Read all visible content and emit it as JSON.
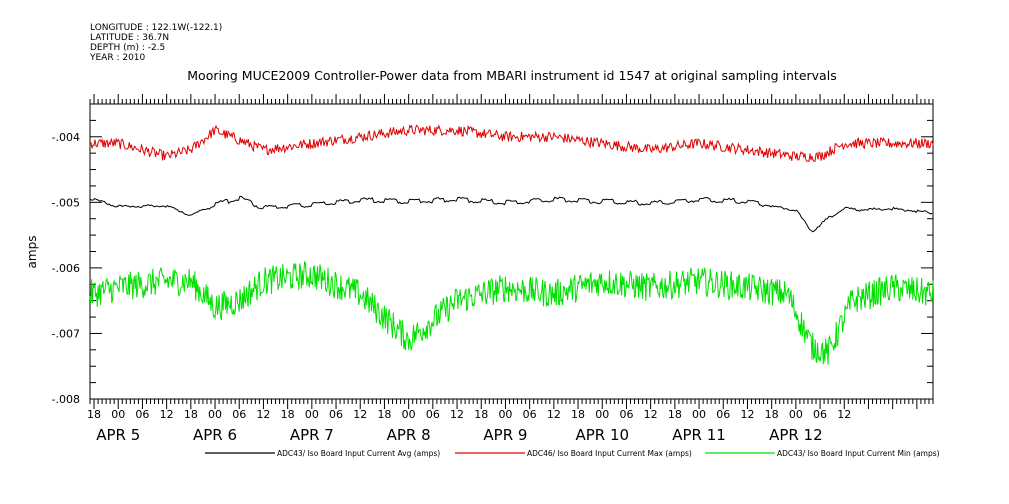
{
  "metadata": {
    "longitude": "LONGITUDE : 122.1W(-122.1)",
    "latitude": "LATITUDE : 36.7N",
    "depth": "DEPTH (m) : -2.5",
    "year": "YEAR : 2010"
  },
  "chart_data": {
    "type": "line",
    "title": "Mooring MUCE2009 Controller-Power data from MBARI instrument id 1547 at original sampling intervals",
    "xlabel": "",
    "ylabel": "amps",
    "ylim": [
      -0.008,
      -0.0035
    ],
    "yticks": [
      -0.008,
      -0.007,
      -0.006,
      -0.005,
      -0.004
    ],
    "ytick_labels": [
      "-.008",
      "-.007",
      "-.006",
      "-.005",
      "-.004"
    ],
    "xlim_hours_from_apr5_00": [
      -7,
      202
    ],
    "xtick_labels": [
      "18",
      "00",
      "06",
      "12",
      "18",
      "00",
      "06",
      "12",
      "18",
      "00",
      "06",
      "12",
      "18",
      "00",
      "06",
      "12",
      "18",
      "00",
      "06",
      "12",
      "18",
      "00",
      "06",
      "12",
      "18",
      "00",
      "06",
      "12",
      "18",
      "00",
      "06",
      "12"
    ],
    "day_labels": [
      "APR  5",
      "APR  6",
      "APR  7",
      "APR  8",
      "APR  9",
      "APR 10",
      "APR 11",
      "APR 12"
    ],
    "grid": false,
    "legend_placement": "bottom",
    "series": [
      {
        "name": "ADC43/ Iso Board Input Current Avg (amps)",
        "color": "#000000",
        "x_hours": [
          -7,
          0,
          12,
          18,
          24,
          30,
          36,
          48,
          60,
          72,
          84,
          96,
          108,
          120,
          132,
          144,
          156,
          168,
          172,
          176,
          180,
          184,
          192,
          202
        ],
        "values": [
          -0.00495,
          -0.00507,
          -0.00506,
          -0.0052,
          -0.00505,
          -0.00495,
          -0.0051,
          -0.00505,
          -0.00498,
          -0.005,
          -0.00497,
          -0.00502,
          -0.00497,
          -0.005,
          -0.00503,
          -0.00497,
          -0.005,
          -0.00513,
          -0.00545,
          -0.00525,
          -0.0051,
          -0.00512,
          -0.0051,
          -0.00517
        ]
      },
      {
        "name": "ADC46/ Iso Board Input Current Max (amps)",
        "color": "#e00000",
        "x_hours": [
          -7,
          0,
          12,
          18,
          24,
          36,
          48,
          60,
          72,
          84,
          96,
          108,
          120,
          132,
          144,
          156,
          168,
          174,
          180,
          192,
          202
        ],
        "values": [
          -0.0041,
          -0.0041,
          -0.0043,
          -0.0042,
          -0.0039,
          -0.0042,
          -0.0041,
          -0.004,
          -0.0039,
          -0.0039,
          -0.004,
          -0.004,
          -0.0041,
          -0.0042,
          -0.0041,
          -0.0042,
          -0.0043,
          -0.0043,
          -0.0041,
          -0.0041,
          -0.0041
        ]
      },
      {
        "name": "ADC43/ Iso Board Input Current Min (amps)",
        "color": "#00e000",
        "x_hours": [
          -7,
          0,
          12,
          18,
          24,
          30,
          36,
          48,
          60,
          72,
          84,
          96,
          108,
          120,
          132,
          144,
          156,
          166,
          172,
          176,
          182,
          192,
          202
        ],
        "values": [
          -0.0064,
          -0.0063,
          -0.0062,
          -0.0062,
          -0.0066,
          -0.0065,
          -0.0062,
          -0.0061,
          -0.0064,
          -0.0071,
          -0.0065,
          -0.0063,
          -0.0064,
          -0.0062,
          -0.0063,
          -0.0062,
          -0.0063,
          -0.0064,
          -0.0072,
          -0.0073,
          -0.0065,
          -0.0063,
          -0.0064
        ]
      }
    ]
  }
}
